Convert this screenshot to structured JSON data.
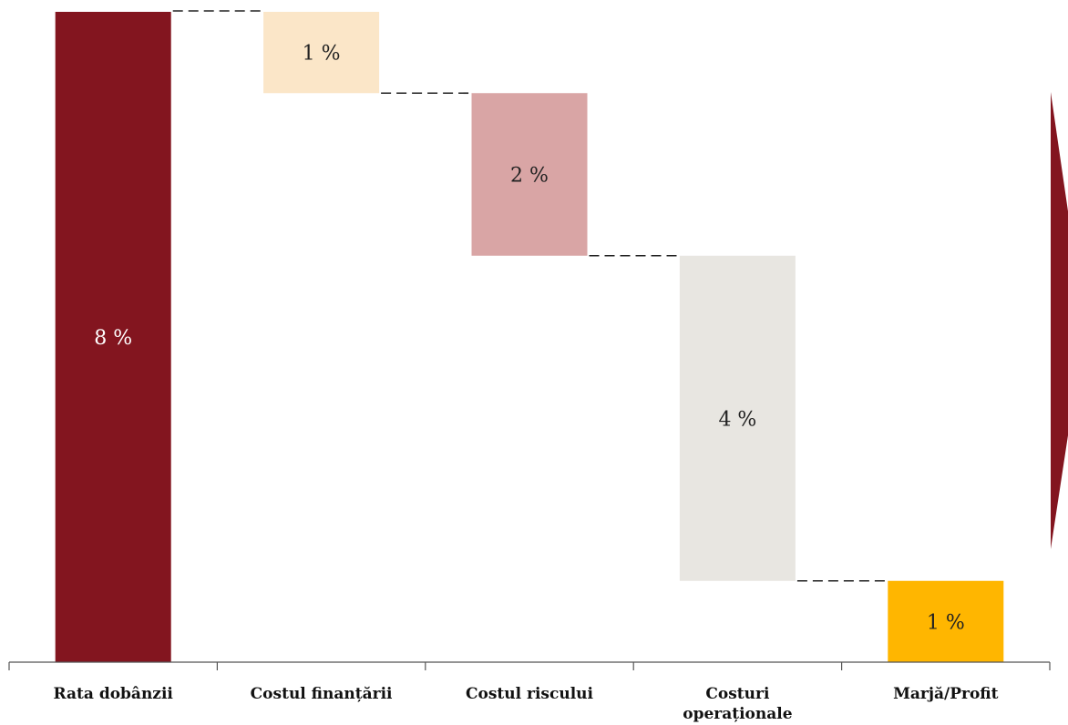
{
  "chart_data": {
    "type": "bar",
    "subtype": "waterfall",
    "categories": [
      "Rata dobânzii",
      "Costul finanțării",
      "Costul riscului",
      "Costuri operaționale",
      "Marjă/Profit"
    ],
    "category_lines": [
      [
        "Rata dobânzii"
      ],
      [
        "Costul finanțării"
      ],
      [
        "Costul riscului"
      ],
      [
        "Costuri",
        "operaționale"
      ],
      [
        "Marjă/Profit"
      ]
    ],
    "values": [
      8,
      -1,
      -2,
      -4,
      1
    ],
    "kinds": [
      "total",
      "decrease",
      "decrease",
      "decrease",
      "total"
    ],
    "data_labels": [
      "8 %",
      "1 %",
      "2 %",
      "4 %",
      "1 %"
    ],
    "colors": [
      "#83151f",
      "#fbe6c8",
      "#d9a5a5",
      "#e8e6e1",
      "#ffb600"
    ],
    "label_colors": [
      "#ffffff",
      "#222222",
      "#222222",
      "#222222",
      "#222222"
    ],
    "ylim": [
      0,
      8
    ],
    "grid": false,
    "connectors": "dashed",
    "title": "",
    "xlabel": "",
    "ylabel": ""
  }
}
